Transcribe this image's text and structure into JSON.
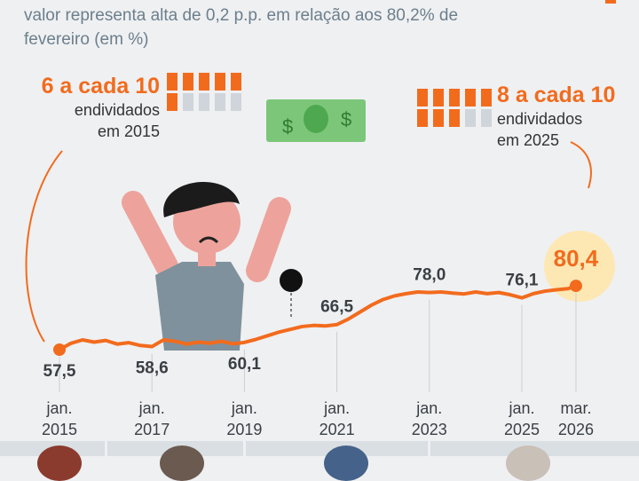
{
  "subtitle": "valor representa alta de 0,2 p.p. em relação aos 80,2% de fevereiro (em %)",
  "stat2015": {
    "big": "6 a cada 10",
    "l1": "endividados",
    "l2": "em 2015",
    "filled": 6
  },
  "stat2025": {
    "big": "8 a cada 10",
    "l1": "endividados",
    "l2": "em 2025",
    "filled": 8
  },
  "colors": {
    "accent": "#f26b1d",
    "highlight": "#fde8b4"
  },
  "chart_data": {
    "type": "line",
    "title": "",
    "ylabel": "%",
    "x": [
      2015.0,
      2015.25,
      2015.5,
      2015.75,
      2016.0,
      2016.25,
      2016.5,
      2016.75,
      2017.0,
      2017.25,
      2017.5,
      2017.75,
      2018.0,
      2018.25,
      2018.5,
      2018.75,
      2019.0,
      2019.25,
      2019.5,
      2019.75,
      2020.0,
      2020.25,
      2020.5,
      2020.75,
      2021.0,
      2021.25,
      2021.5,
      2021.75,
      2022.0,
      2022.25,
      2022.5,
      2022.75,
      2023.0,
      2023.25,
      2023.5,
      2023.75,
      2024.0,
      2024.25,
      2024.5,
      2024.75,
      2025.0,
      2025.25,
      2025.5,
      2025.75,
      2026.0,
      2026.17
    ],
    "values": [
      57.5,
      59.8,
      61.0,
      60.2,
      60.8,
      59.5,
      60.0,
      59.0,
      58.6,
      61.0,
      60.5,
      59.5,
      60.2,
      59.8,
      60.5,
      59.6,
      60.1,
      61.2,
      62.5,
      63.8,
      64.8,
      65.8,
      66.2,
      66.0,
      66.5,
      68.5,
      71.0,
      73.5,
      75.5,
      76.8,
      77.6,
      78.2,
      78.0,
      78.2,
      77.8,
      77.5,
      78.2,
      77.6,
      78.0,
      77.2,
      76.1,
      77.6,
      78.5,
      79.0,
      79.4,
      80.4
    ],
    "labels": [
      {
        "x": 2015.0,
        "text": "57,5"
      },
      {
        "x": 2017.0,
        "text": "58,6"
      },
      {
        "x": 2019.0,
        "text": "60,1"
      },
      {
        "x": 2021.0,
        "text": "66,5"
      },
      {
        "x": 2023.0,
        "text": "78,0"
      },
      {
        "x": 2025.0,
        "text": "76,1"
      },
      {
        "x": 2026.17,
        "text": "80,4"
      }
    ],
    "xticks": [
      {
        "x": 2015.0,
        "l1": "jan.",
        "l2": "2015"
      },
      {
        "x": 2017.0,
        "l1": "jan.",
        "l2": "2017"
      },
      {
        "x": 2019.0,
        "l1": "jan.",
        "l2": "2019"
      },
      {
        "x": 2021.0,
        "l1": "jan.",
        "l2": "2021"
      },
      {
        "x": 2023.0,
        "l1": "jan.",
        "l2": "2023"
      },
      {
        "x": 2025.0,
        "l1": "jan.",
        "l2": "2025"
      },
      {
        "x": 2026.17,
        "l1": "mar.",
        "l2": "2026"
      }
    ],
    "xlim": [
      2015.0,
      2026.17
    ]
  }
}
